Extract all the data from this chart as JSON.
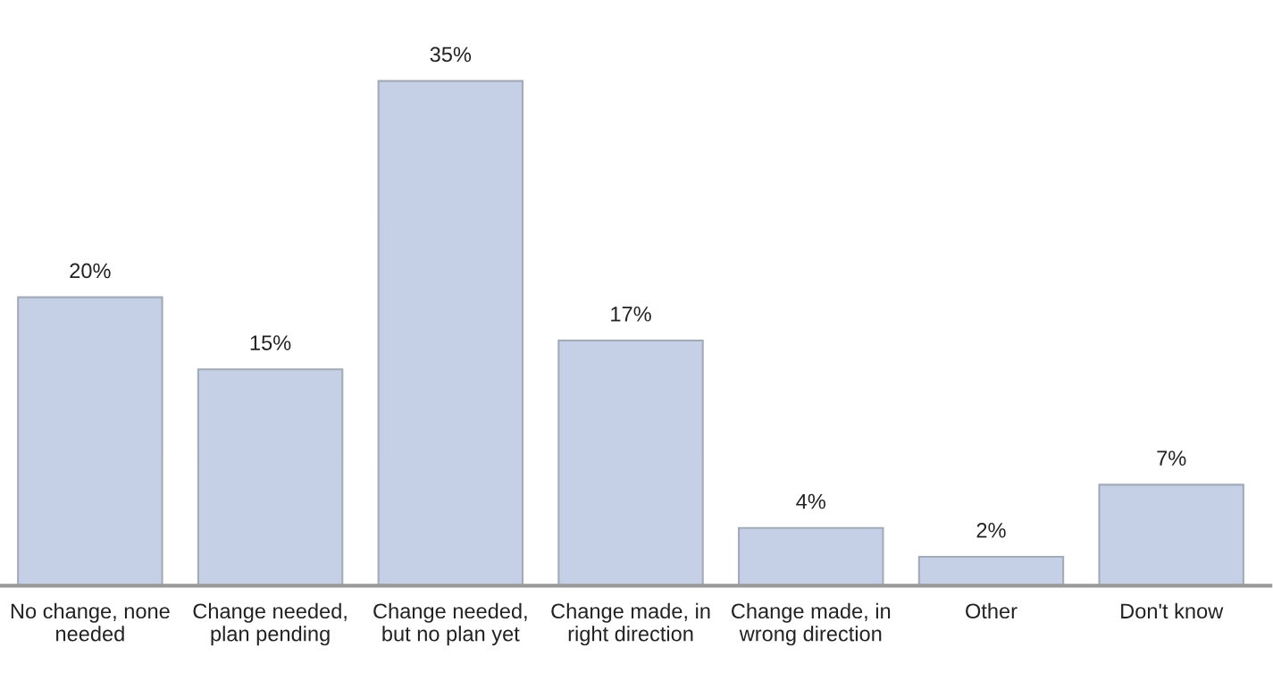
{
  "chart_data": {
    "type": "bar",
    "categories": [
      "No change, none\nneeded",
      "Change needed,\nplan pending",
      "Change needed,\nbut no plan yet",
      "Change made, in\nright direction",
      "Change made, in\nwrong direction",
      "Other",
      "Don't know"
    ],
    "values": [
      20,
      15,
      35,
      17,
      4,
      2,
      7
    ],
    "value_labels": [
      "20%",
      "15%",
      "35%",
      "17%",
      "4%",
      "2%",
      "7%"
    ],
    "color": "#c5d0e6",
    "grid": false,
    "legend": false
  }
}
